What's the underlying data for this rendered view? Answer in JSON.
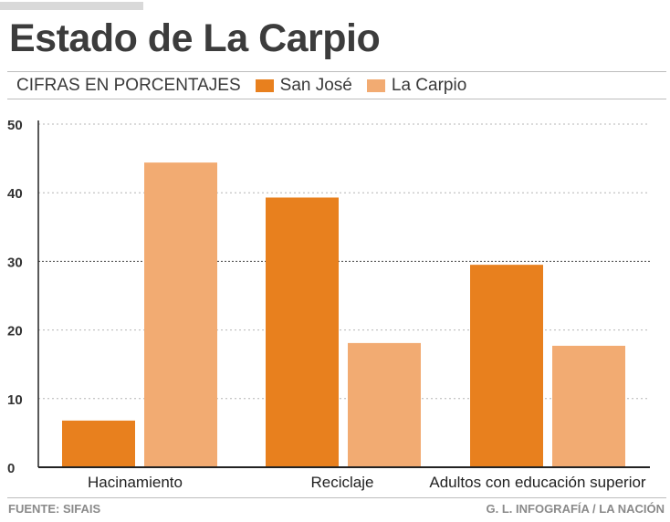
{
  "chart_data": {
    "type": "bar",
    "title": "Estado de La Carpio",
    "subtitle": "CIFRAS EN PORCENTAJES",
    "categories": [
      "Hacinamiento",
      "Reciclaje",
      "Adultos con educación superior"
    ],
    "series": [
      {
        "name": "San José",
        "color": "#e8801e",
        "values": [
          6.8,
          39.3,
          29.5
        ]
      },
      {
        "name": "La Carpio",
        "color": "#f2ab72",
        "values": [
          44.4,
          18.1,
          17.7
        ]
      }
    ],
    "ylim": [
      0,
      50
    ],
    "yticks": [
      0,
      10,
      20,
      30,
      40,
      50
    ],
    "ytick_labels": [
      "0",
      "10",
      "20",
      "30",
      "40",
      "50"
    ],
    "grid": true,
    "xlabel": "",
    "ylabel": ""
  },
  "footer": {
    "source": "FUENTE: SIFAIS",
    "credit": "G. L. INFOGRAFÍA / LA NACIÓN"
  }
}
